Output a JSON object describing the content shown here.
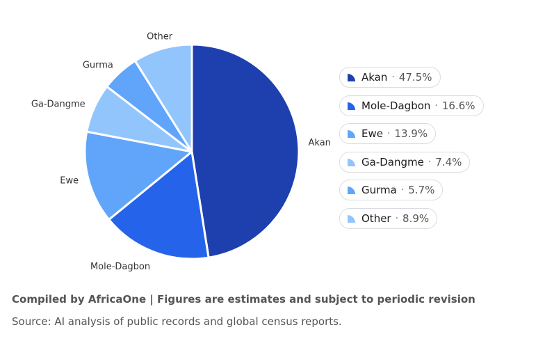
{
  "chart_data": {
    "type": "pie",
    "title": "",
    "slices": [
      {
        "label": "Akan",
        "value": 47.5,
        "display": "47.5%",
        "color": "#1e40af"
      },
      {
        "label": "Mole-Dagbon",
        "value": 16.6,
        "display": "16.6%",
        "color": "#2563eb"
      },
      {
        "label": "Ewe",
        "value": 13.9,
        "display": "13.9%",
        "color": "#60a5fa"
      },
      {
        "label": "Ga-Dangme",
        "value": 7.4,
        "display": "7.4%",
        "color": "#93c5fd"
      },
      {
        "label": "Gurma",
        "value": 5.7,
        "display": "5.7%",
        "color": "#60a5fa"
      },
      {
        "label": "Other",
        "value": 8.9,
        "display": "8.9%",
        "color": "#93c5fd"
      }
    ],
    "legend_position": "right",
    "legend_separator": "·"
  },
  "footer": {
    "credit": "Compiled by AfricaOne | Figures are estimates and subject to periodic revision",
    "source": "Source: AI analysis of public records and global census reports."
  }
}
